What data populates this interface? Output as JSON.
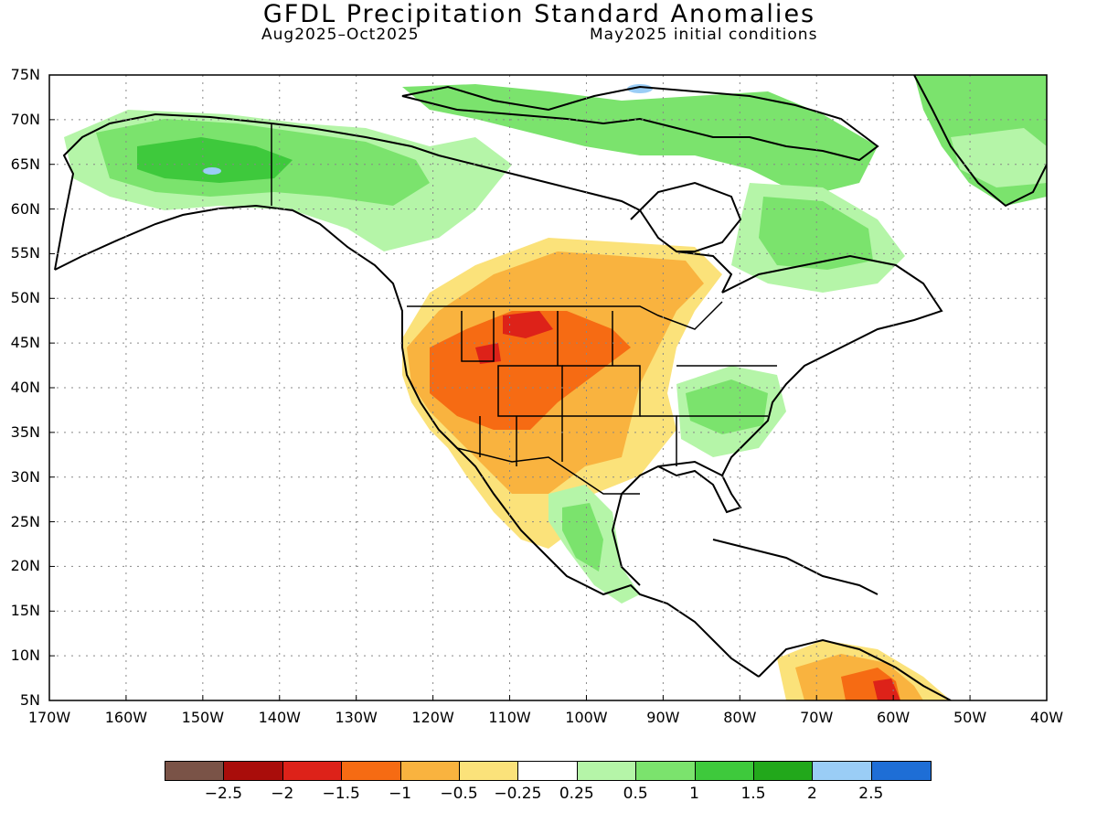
{
  "title": "GFDL Precipitation Standard Anomalies",
  "subtitle_left": "Aug2025–Oct2025",
  "subtitle_right": "May2025 initial conditions",
  "lat_ticks": [
    "75N",
    "70N",
    "65N",
    "60N",
    "55N",
    "50N",
    "45N",
    "40N",
    "35N",
    "30N",
    "25N",
    "20N",
    "15N",
    "10N",
    "5N"
  ],
  "lon_ticks": [
    "170W",
    "160W",
    "150W",
    "140W",
    "130W",
    "120W",
    "110W",
    "100W",
    "90W",
    "80W",
    "70W",
    "60W",
    "50W",
    "40W"
  ],
  "map_extent": {
    "lon_min": -170,
    "lon_max": -40,
    "lat_min": 5,
    "lat_max": 75
  },
  "colorbar": {
    "colors": [
      "#7a5347",
      "#a90d0a",
      "#dd2219",
      "#f66b13",
      "#f9b33f",
      "#fbe27a",
      "#ffffff",
      "#b5f5a8",
      "#7be36d",
      "#3ec93c",
      "#22a81b",
      "#9acdf6",
      "#1e6ed6"
    ],
    "labels": [
      "−2.5",
      "−2",
      "−1.5",
      "−1",
      "−0.5",
      "−0.25",
      "0.25",
      "0.5",
      "1",
      "1.5",
      "2",
      "2.5"
    ]
  }
}
